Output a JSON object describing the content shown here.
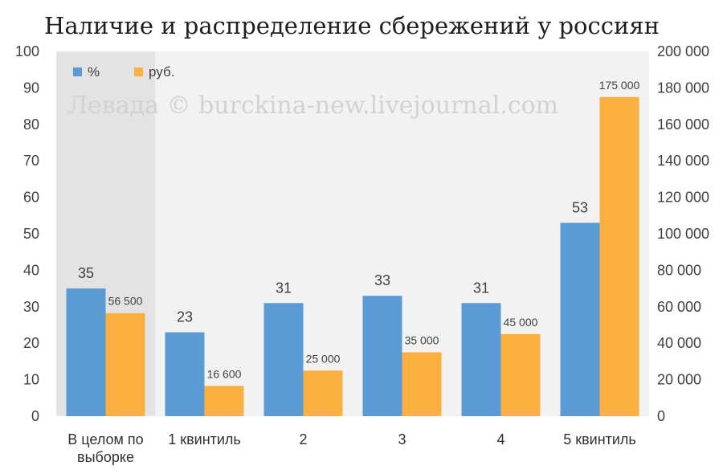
{
  "title": "Наличие и распределение сбережений у россиян",
  "watermark": "Левада © burckina-new.livejournal.com",
  "colors": {
    "pct": "#5b9bd5",
    "rub": "#fbb040",
    "plot_bg": "#f2f2f2",
    "highlight_bg": "#e3e3e3"
  },
  "chart_data": {
    "type": "bar",
    "categories": [
      "В целом по выборке",
      "1 квинтиль",
      "2",
      "3",
      "4",
      "5 квинтиль"
    ],
    "category_lines": [
      [
        "В целом по",
        "выборке"
      ],
      [
        "1 квинтиль"
      ],
      [
        "2"
      ],
      [
        "3"
      ],
      [
        "4"
      ],
      [
        "5 квинтиль"
      ]
    ],
    "series": [
      {
        "name": "%",
        "axis": "left",
        "values": [
          35,
          23,
          31,
          33,
          31,
          53
        ],
        "labels": [
          "35",
          "23",
          "31",
          "33",
          "31",
          "53"
        ]
      },
      {
        "name": "руб.",
        "axis": "right",
        "values": [
          56500,
          16600,
          25000,
          35000,
          45000,
          175000
        ],
        "labels": [
          "56 500",
          "16 600",
          "25 000",
          "35 000",
          "45 000",
          "175 000"
        ]
      }
    ],
    "y_left": {
      "range": [
        0,
        100
      ],
      "ticks": [
        "0",
        "10",
        "20",
        "30",
        "40",
        "50",
        "60",
        "70",
        "80",
        "90",
        "100"
      ]
    },
    "y_right": {
      "range": [
        0,
        200000
      ],
      "ticks": [
        "0",
        "20 000",
        "40 000",
        "60 000",
        "80 000",
        "100 000",
        "120 000",
        "140 000",
        "160 000",
        "180 000",
        "200 000"
      ]
    },
    "highlighted_category": 0,
    "legend_position": "top-left",
    "grid": false
  }
}
